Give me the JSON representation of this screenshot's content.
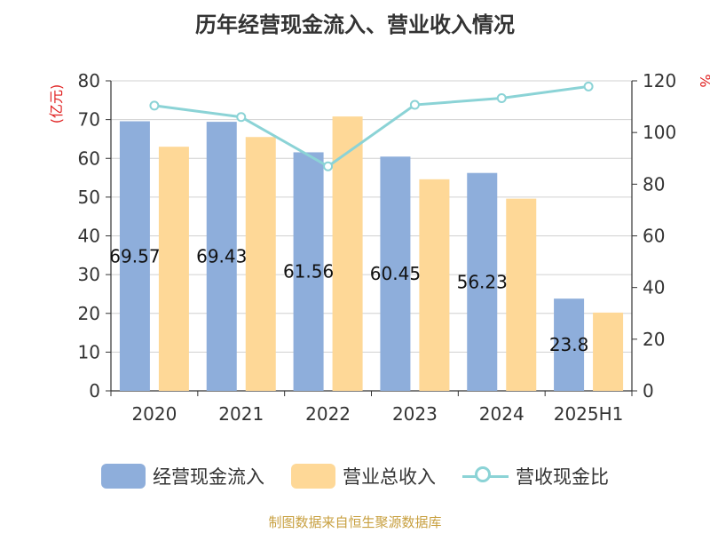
{
  "chart_data": {
    "type": "bar",
    "title": "历年经营现金流入、营业收入情况",
    "categories": [
      "2020",
      "2021",
      "2022",
      "2023",
      "2024",
      "2025H1"
    ],
    "ylabel_left": "(亿元)",
    "ylabel_right": "%",
    "ylim_left": [
      0,
      80
    ],
    "ylim_right": [
      0,
      120
    ],
    "yticks_left": [
      "0",
      "10",
      "20",
      "30",
      "40",
      "50",
      "60",
      "70",
      "80"
    ],
    "yticks_right": [
      "0",
      "20",
      "40",
      "60",
      "80",
      "100",
      "120"
    ],
    "grid": true,
    "legend_position": "bottom",
    "series": [
      {
        "name": "经营现金流入",
        "kind": "bar",
        "axis": "left",
        "color": "#8eaedb",
        "values": [
          69.57,
          69.43,
          61.56,
          60.45,
          56.23,
          23.8
        ],
        "labels": [
          "69.57",
          "69.43",
          "61.56",
          "60.45",
          "56.23",
          "23.8"
        ]
      },
      {
        "name": "营业总收入",
        "kind": "bar",
        "axis": "left",
        "color": "#fed897",
        "values": [
          63.0,
          65.5,
          70.8,
          54.6,
          49.6,
          20.2
        ]
      },
      {
        "name": "营收现金比",
        "kind": "line",
        "axis": "right",
        "color": "#8bd3d6",
        "values": [
          110.4,
          106.0,
          86.9,
          110.7,
          113.3,
          117.8
        ]
      }
    ]
  },
  "footer": {
    "source": "制图数据来自恒生聚源数据库"
  }
}
